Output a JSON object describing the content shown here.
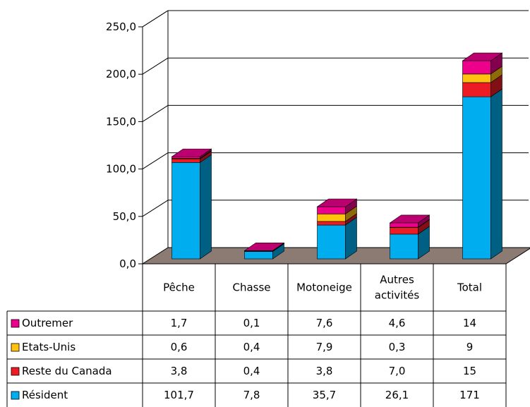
{
  "chart_data": {
    "type": "bar",
    "stacked": true,
    "three_d": true,
    "categories": [
      "Pêche",
      "Chasse",
      "Motoneige",
      "Autres activités",
      "Total"
    ],
    "category_lines": [
      [
        "Pêche"
      ],
      [
        "Chasse"
      ],
      [
        "Motoneige"
      ],
      [
        "Autres",
        "activités"
      ],
      [
        "Total"
      ]
    ],
    "ylim": [
      0,
      250
    ],
    "yticks": [
      "0,0",
      "50,0",
      "100,0",
      "150,0",
      "200,0",
      "250,0"
    ],
    "ytick_values": [
      0,
      50,
      100,
      150,
      200,
      250
    ],
    "grid": true,
    "legend_placement": "data table left",
    "series": [
      {
        "name": "Résident",
        "color": "#00aeef",
        "values": [
          101.7,
          7.8,
          35.7,
          26.1,
          171
        ],
        "labels": [
          "101,7",
          "7,8",
          "35,7",
          "26,1",
          "171"
        ]
      },
      {
        "name": "Reste du Canada",
        "color": "#ed1c24",
        "values": [
          3.8,
          0.4,
          3.8,
          7.0,
          15
        ],
        "labels": [
          "3,8",
          "0,4",
          "3,8",
          "7,0",
          "15"
        ]
      },
      {
        "name": "Etats-Unis",
        "color": "#ffc20e",
        "values": [
          0.6,
          0.4,
          7.9,
          0.3,
          9
        ],
        "labels": [
          "0,6",
          "0,4",
          "7,9",
          "0,3",
          "9"
        ]
      },
      {
        "name": "Outremer",
        "color": "#ec008c",
        "values": [
          1.7,
          0.1,
          7.6,
          4.6,
          14
        ],
        "labels": [
          "1,7",
          "0,1",
          "7,6",
          "4,6",
          "14"
        ]
      }
    ],
    "table_row_order": [
      "Outremer",
      "Etats-Unis",
      "Reste du Canada",
      "Résident"
    ],
    "floor_color": "#8c7b73"
  }
}
